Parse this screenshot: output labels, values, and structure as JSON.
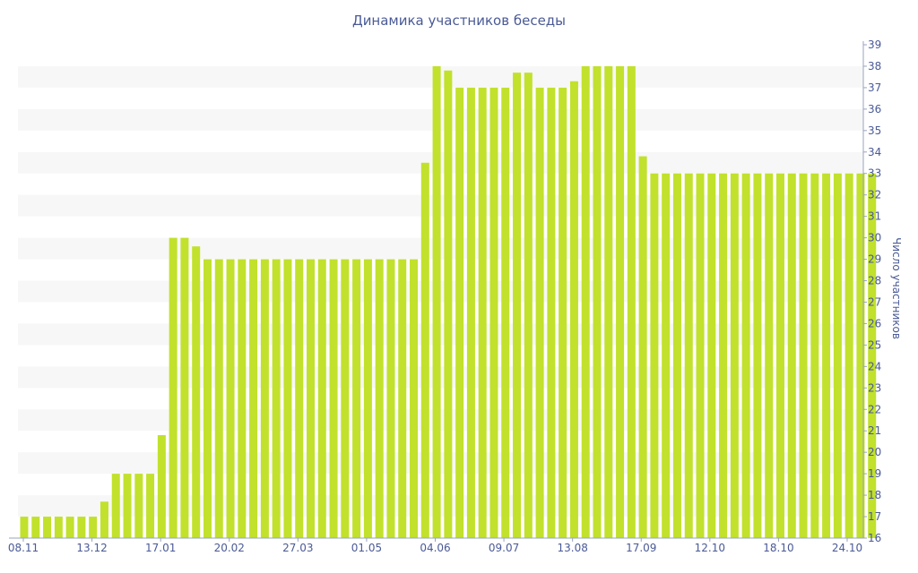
{
  "chart_data": {
    "type": "bar",
    "title": "Динамика участников беседы",
    "ylabel": "Число участников",
    "xlabel": "",
    "ylim": [
      16,
      39
    ],
    "y_axis_position": "right",
    "grid": "horizontal bands",
    "bar_color": "#c1e12c",
    "band_color": "#f7f7f7",
    "text_color": "#4a5a96",
    "x_tick_labels": [
      "08.11",
      "13.12",
      "17.01",
      "20.02",
      "27.03",
      "01.05",
      "04.06",
      "09.07",
      "13.08",
      "17.09",
      "12.10",
      "18.10",
      "24.10"
    ],
    "values": [
      17,
      17,
      17,
      17,
      17,
      17,
      17,
      17.7,
      19,
      19,
      19,
      19,
      20.8,
      30,
      30,
      29.6,
      29,
      29,
      29,
      29,
      29,
      29,
      29,
      29,
      29,
      29,
      29,
      29,
      29,
      29,
      29,
      29,
      29,
      29,
      29,
      33.5,
      38,
      37.8,
      37,
      37,
      37,
      37,
      37,
      37.7,
      37.7,
      37,
      37,
      37,
      37.3,
      38,
      38,
      38,
      38,
      38,
      33.8,
      33,
      33,
      33,
      33,
      33,
      33,
      33,
      33,
      33,
      33,
      33,
      33,
      33,
      33,
      33,
      33,
      33,
      33,
      33,
      33
    ]
  }
}
